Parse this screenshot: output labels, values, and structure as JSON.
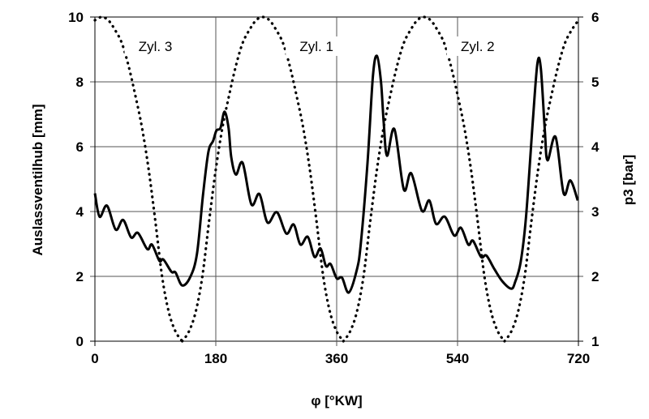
{
  "chart_data": {
    "type": "line",
    "title": "",
    "xlabel": "φ [°KW]",
    "ylabel_left": "Auslassventilhub [mm]",
    "ylabel_right": "p3 [bar]",
    "xlim": [
      0,
      720
    ],
    "ylim_left": [
      0,
      10
    ],
    "ylim_right": [
      1,
      6
    ],
    "xticks": [
      "0",
      "180",
      "360",
      "540",
      "720"
    ],
    "yticks_left": [
      "0",
      "2",
      "4",
      "6",
      "8",
      "10"
    ],
    "yticks_right": [
      "1",
      "2",
      "3",
      "4",
      "5",
      "6"
    ],
    "grid": true,
    "annotations": [
      {
        "text": "Zyl. 3",
        "x": 90,
        "y": 9.0
      },
      {
        "text": "Zyl. 1",
        "x": 330,
        "y": 9.0
      },
      {
        "text": "Zyl. 2",
        "x": 570,
        "y": 9.0
      }
    ],
    "series": [
      {
        "name": "Zyl. 3",
        "axis": "left",
        "style": "dotted",
        "segments": [
          [
            [
              0,
              9.9
            ],
            [
              10,
              10
            ],
            [
              20,
              9.9
            ],
            [
              30,
              9.6
            ],
            [
              40,
              9.2
            ],
            [
              50,
              8.5
            ],
            [
              60,
              7.6
            ],
            [
              70,
              6.6
            ],
            [
              80,
              5.3
            ],
            [
              90,
              3.7
            ],
            [
              100,
              2.0
            ],
            [
              110,
              0.9
            ],
            [
              120,
              0.3
            ],
            [
              130,
              0
            ]
          ],
          [
            [
              610,
              0
            ],
            [
              620,
              0.3
            ],
            [
              630,
              0.9
            ],
            [
              640,
              2.0
            ],
            [
              650,
              3.7
            ],
            [
              660,
              5.3
            ],
            [
              670,
              6.6
            ],
            [
              680,
              7.6
            ],
            [
              690,
              8.5
            ],
            [
              700,
              9.2
            ],
            [
              710,
              9.6
            ],
            [
              720,
              9.9
            ]
          ]
        ]
      },
      {
        "name": "Zyl. 1",
        "axis": "left",
        "style": "dotted",
        "segments": [
          [
            [
              130,
              0
            ],
            [
              140,
              0.3
            ],
            [
              150,
              0.9
            ],
            [
              160,
              2.0
            ],
            [
              170,
              3.7
            ],
            [
              180,
              5.3
            ],
            [
              190,
              6.6
            ],
            [
              200,
              7.6
            ],
            [
              210,
              8.5
            ],
            [
              220,
              9.2
            ],
            [
              230,
              9.6
            ],
            [
              240,
              9.9
            ],
            [
              250,
              10
            ],
            [
              260,
              9.9
            ],
            [
              270,
              9.6
            ],
            [
              280,
              9.2
            ],
            [
              290,
              8.5
            ],
            [
              300,
              7.6
            ],
            [
              310,
              6.6
            ],
            [
              320,
              5.3
            ],
            [
              330,
              3.7
            ],
            [
              340,
              2.0
            ],
            [
              350,
              0.9
            ],
            [
              360,
              0.3
            ],
            [
              370,
              0
            ]
          ]
        ]
      },
      {
        "name": "Zyl. 2",
        "axis": "left",
        "style": "dotted",
        "segments": [
          [
            [
              370,
              0
            ],
            [
              380,
              0.3
            ],
            [
              390,
              0.9
            ],
            [
              400,
              2.0
            ],
            [
              410,
              3.7
            ],
            [
              420,
              5.3
            ],
            [
              430,
              6.6
            ],
            [
              440,
              7.6
            ],
            [
              450,
              8.5
            ],
            [
              460,
              9.2
            ],
            [
              470,
              9.6
            ],
            [
              480,
              9.9
            ],
            [
              490,
              10
            ],
            [
              500,
              9.9
            ],
            [
              510,
              9.6
            ],
            [
              520,
              9.2
            ],
            [
              530,
              8.5
            ],
            [
              540,
              7.6
            ],
            [
              550,
              6.6
            ],
            [
              560,
              5.3
            ],
            [
              570,
              3.7
            ],
            [
              580,
              2.0
            ],
            [
              590,
              0.9
            ],
            [
              600,
              0.3
            ],
            [
              610,
              0
            ]
          ]
        ]
      },
      {
        "axis": "right",
        "style": "solid",
        "segments": [
          [
            [
              0,
              3.28
            ],
            [
              7,
              2.92
            ],
            [
              18,
              3.09
            ],
            [
              31,
              2.72
            ],
            [
              42,
              2.87
            ],
            [
              54,
              2.6
            ],
            [
              64,
              2.67
            ],
            [
              78,
              2.42
            ],
            [
              85,
              2.49
            ],
            [
              96,
              2.24
            ],
            [
              102,
              2.26
            ],
            [
              114,
              2.07
            ],
            [
              120,
              2.06
            ],
            [
              130,
              1.86
            ],
            [
              142,
              1.99
            ],
            [
              152,
              2.35
            ],
            [
              161,
              3.26
            ],
            [
              169,
              3.92
            ],
            [
              176,
              4.09
            ],
            [
              181,
              4.25
            ],
            [
              187,
              4.29
            ],
            [
              193,
              4.54
            ],
            [
              199,
              4.29
            ],
            [
              203,
              3.84
            ],
            [
              210,
              3.57
            ],
            [
              220,
              3.75
            ],
            [
              233,
              3.11
            ],
            [
              245,
              3.27
            ],
            [
              257,
              2.83
            ],
            [
              271,
              2.99
            ],
            [
              285,
              2.66
            ],
            [
              296,
              2.8
            ],
            [
              306,
              2.49
            ],
            [
              317,
              2.61
            ],
            [
              327,
              2.3
            ],
            [
              336,
              2.43
            ],
            [
              344,
              2.16
            ],
            [
              351,
              2.19
            ],
            [
              360,
              1.97
            ],
            [
              368,
              1.98
            ],
            [
              378,
              1.75
            ],
            [
              390,
              2.1
            ],
            [
              396,
              2.51
            ],
            [
              406,
              3.76
            ],
            [
              414,
              5.09
            ],
            [
              420,
              5.4
            ],
            [
              426,
              5.0
            ],
            [
              430,
              4.38
            ],
            [
              435,
              3.86
            ],
            [
              446,
              4.27
            ],
            [
              460,
              3.34
            ],
            [
              471,
              3.59
            ],
            [
              487,
              3.01
            ],
            [
              498,
              3.17
            ],
            [
              508,
              2.81
            ],
            [
              521,
              2.92
            ],
            [
              535,
              2.63
            ],
            [
              545,
              2.75
            ],
            [
              556,
              2.49
            ],
            [
              563,
              2.55
            ],
            [
              575,
              2.3
            ],
            [
              583,
              2.32
            ],
            [
              595,
              2.11
            ],
            [
              607,
              1.92
            ],
            [
              620,
              1.81
            ],
            [
              626,
              1.92
            ],
            [
              634,
              2.22
            ],
            [
              642,
              2.92
            ],
            [
              652,
              4.38
            ],
            [
              659,
              5.29
            ],
            [
              664,
              5.21
            ],
            [
              670,
              4.25
            ],
            [
              674,
              3.79
            ],
            [
              686,
              4.15
            ],
            [
              698,
              3.28
            ],
            [
              708,
              3.48
            ],
            [
              719,
              3.17
            ]
          ]
        ]
      }
    ]
  }
}
